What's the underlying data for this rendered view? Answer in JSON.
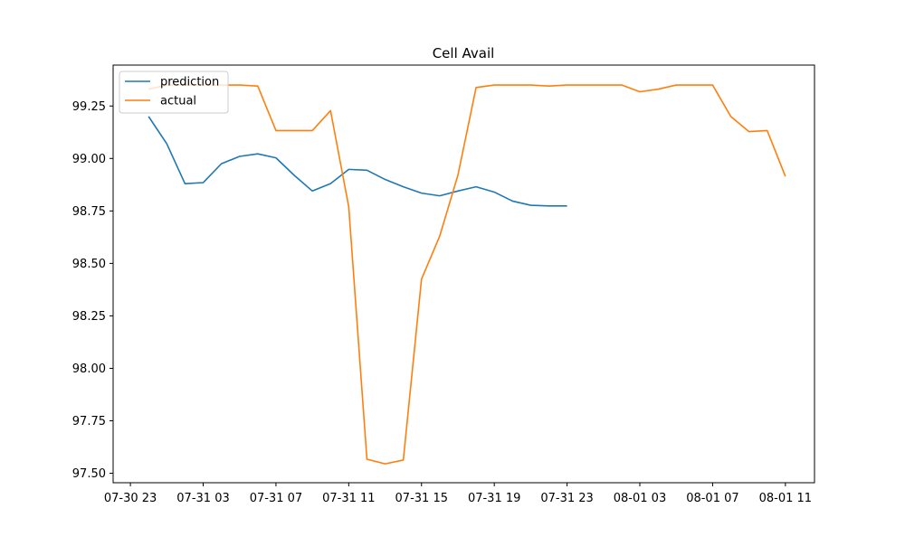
{
  "chart_data": {
    "type": "line",
    "title": "Cell Avail",
    "xlabel": "",
    "ylabel": "",
    "x_tick_labels": [
      "07-30 23",
      "07-31 03",
      "07-31 07",
      "07-31 11",
      "07-31 15",
      "07-31 19",
      "07-31 23",
      "08-01 03",
      "08-01 07",
      "08-01 11"
    ],
    "y_ticks": [
      97.5,
      97.75,
      98.0,
      98.25,
      98.5,
      98.75,
      99.0,
      99.25
    ],
    "y_tick_labels": [
      "97.50",
      "97.75",
      "98.00",
      "98.25",
      "98.50",
      "98.75",
      "99.00",
      "99.25"
    ],
    "xlim": [
      "07-30 22:03",
      "08-01 12:36"
    ],
    "ylim": [
      97.455,
      99.445
    ],
    "grid": false,
    "legend_position": "upper left",
    "series": [
      {
        "name": "prediction",
        "color": "#1f77b4",
        "x": [
          "07-31 00",
          "07-31 01",
          "07-31 02",
          "07-31 03",
          "07-31 04",
          "07-31 05",
          "07-31 06",
          "07-31 07",
          "07-31 08",
          "07-31 09",
          "07-31 10",
          "07-31 11",
          "07-31 12",
          "07-31 13",
          "07-31 14",
          "07-31 15",
          "07-31 16",
          "07-31 17",
          "07-31 18",
          "07-31 19",
          "07-31 20",
          "07-31 21",
          "07-31 22",
          "07-31 23"
        ],
        "values": [
          99.2,
          99.07,
          98.88,
          98.885,
          98.975,
          99.01,
          99.022,
          99.003,
          98.92,
          98.845,
          98.88,
          98.948,
          98.944,
          98.9,
          98.865,
          98.835,
          98.822,
          98.845,
          98.865,
          98.84,
          98.797,
          98.777,
          98.774,
          98.774
        ]
      },
      {
        "name": "actual",
        "color": "#ff7f0e",
        "x": [
          "07-31 00",
          "07-31 01",
          "07-31 02",
          "07-31 03",
          "07-31 04",
          "07-31 05",
          "07-31 06",
          "07-31 07",
          "07-31 08",
          "07-31 09",
          "07-31 10",
          "07-31 11",
          "07-31 12",
          "07-31 13",
          "07-31 14",
          "07-31 15",
          "07-31 16",
          "07-31 17",
          "07-31 18",
          "07-31 19",
          "07-31 20",
          "07-31 21",
          "07-31 22",
          "07-31 23",
          "08-01 00",
          "08-01 01",
          "08-01 02",
          "08-01 03",
          "08-01 04",
          "08-01 05",
          "08-01 06",
          "08-01 07",
          "08-01 08",
          "08-01 09",
          "08-01 10",
          "08-01 11"
        ],
        "values": [
          99.33,
          99.35,
          99.35,
          99.35,
          99.35,
          99.35,
          99.345,
          99.133,
          99.133,
          99.133,
          99.228,
          98.77,
          97.567,
          97.545,
          97.563,
          98.425,
          98.63,
          98.92,
          99.338,
          99.35,
          99.35,
          99.35,
          99.345,
          99.35,
          99.35,
          99.35,
          99.35,
          99.318,
          99.33,
          99.35,
          99.35,
          99.35,
          99.2,
          99.128,
          99.133,
          98.915
        ]
      }
    ]
  }
}
